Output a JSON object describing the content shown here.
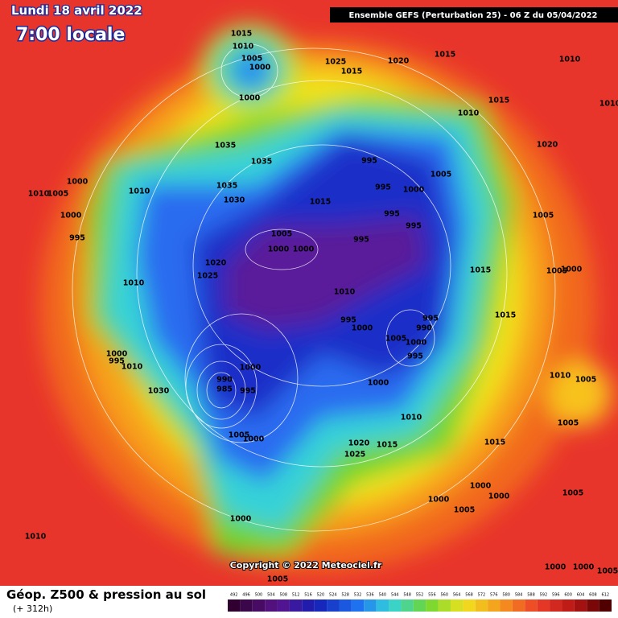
{
  "header": {
    "date": "Lundi 18 avril 2022",
    "time": "7:00 locale",
    "run": "Ensemble GEFS  (Perturbation 25)  -  06 Z du 05/04/2022"
  },
  "copyright": "Copyright © 2022 Meteociel.fr",
  "footer": {
    "title": "Géop. Z500 & pression au sol",
    "lead": "(+ 312h)"
  },
  "colorbar": [
    492,
    496,
    500,
    504,
    508,
    512,
    516,
    520,
    524,
    528,
    532,
    536,
    540,
    544,
    548,
    552,
    556,
    560,
    564,
    568,
    572,
    576,
    580,
    584,
    588,
    592,
    596,
    600,
    604,
    608,
    612
  ],
  "pressure_labels": [
    1015,
    1010,
    1005,
    1000,
    1000,
    1025,
    1015,
    1020,
    1015,
    1010,
    1015,
    1010,
    1020,
    1035,
    1035,
    1035,
    1030,
    1015,
    995,
    995,
    1005,
    1000,
    995,
    995,
    995,
    1005,
    1000,
    1000,
    1010,
    995,
    1000,
    995,
    990,
    1005,
    1000,
    995,
    1020,
    1025,
    1010,
    1005,
    1000,
    1000,
    1010,
    995,
    1010,
    1000,
    995,
    1010,
    1030,
    1000,
    990,
    985,
    995,
    1000,
    1010,
    1005,
    1000,
    1020,
    1015,
    1025,
    1015,
    1000,
    1000,
    1000,
    1005,
    1000,
    1005,
    1005,
    1000,
    1015,
    1015,
    1010,
    1005,
    1005,
    1005,
    1000,
    1000,
    1005,
    1010,
    1005,
    1010
  ]
}
